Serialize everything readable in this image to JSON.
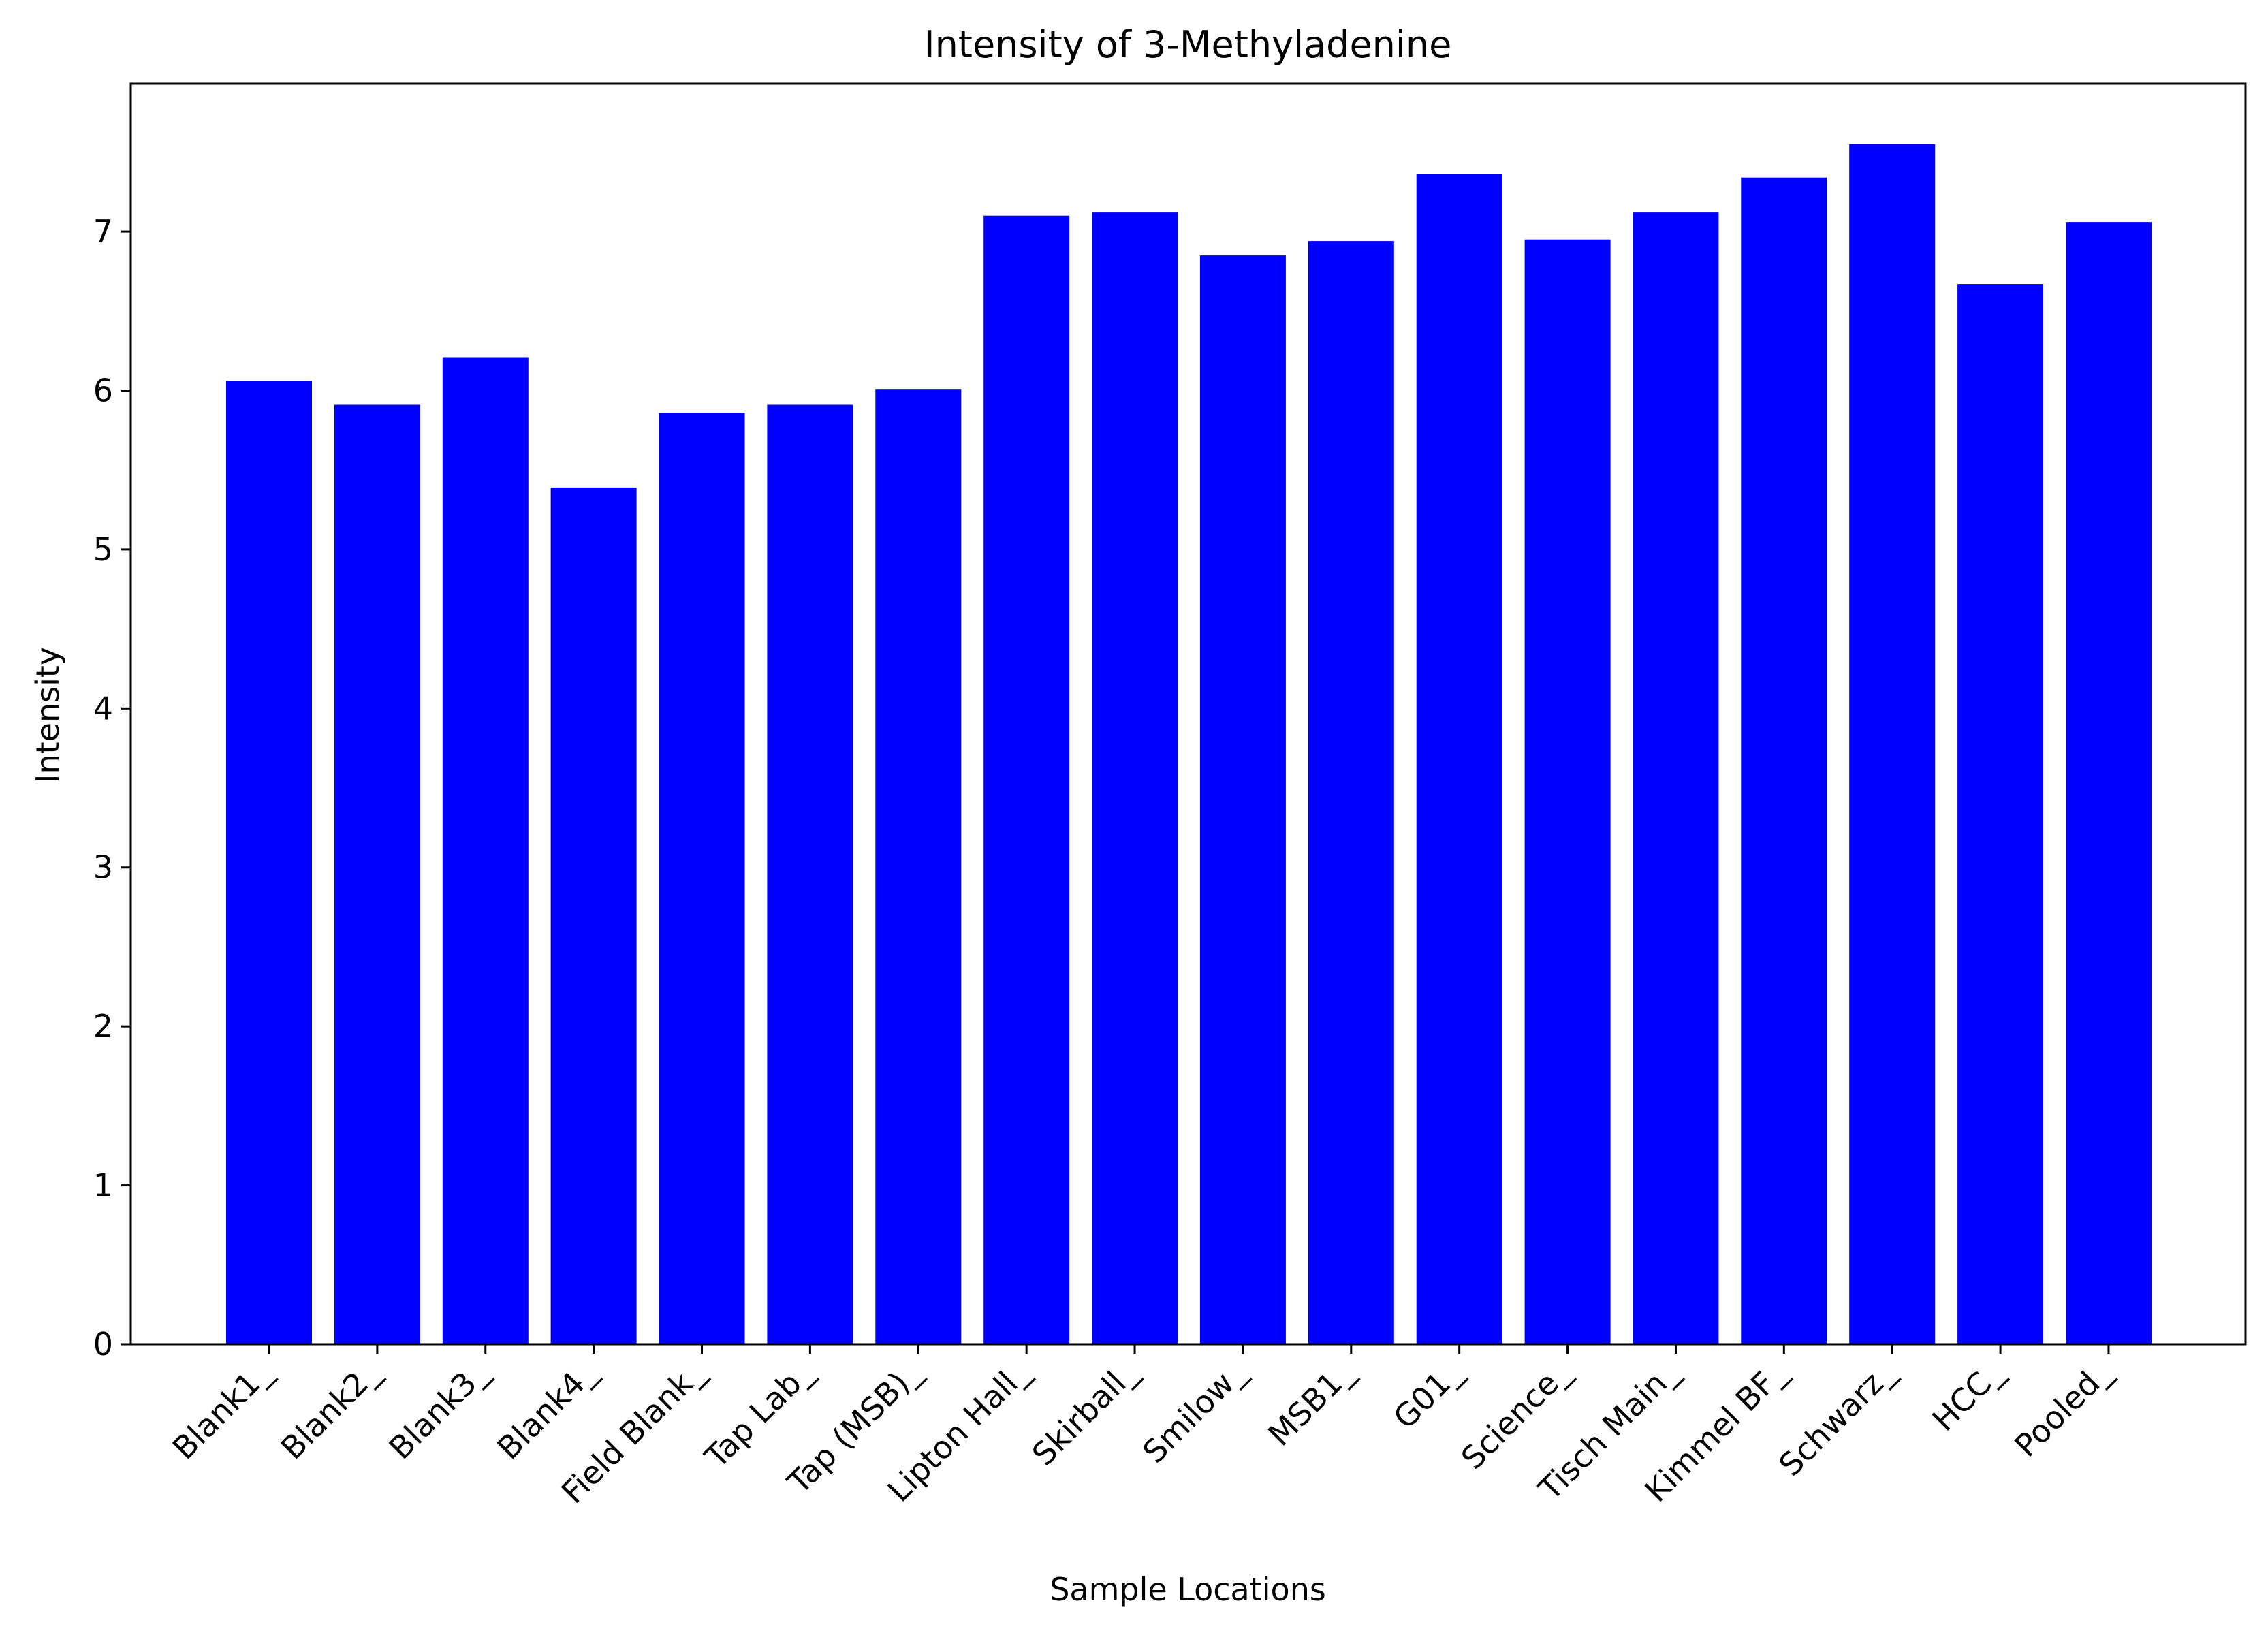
{
  "chart_data": {
    "type": "bar",
    "title": "Intensity of 3-Methyladenine",
    "xlabel": "Sample Locations",
    "ylabel": "Intensity",
    "categories": [
      "Blank1_",
      "Blank2_",
      "Blank3_",
      "Blank4_",
      "Field Blank_",
      "Tap Lab_",
      "Tap (MSB)_",
      "Lipton Hall_",
      "Skirball_",
      "Smilow_",
      "MSB1_",
      "G01_",
      "Science_",
      "Tisch Main_",
      "Kimmel BF_",
      "Schwarz_",
      "HCC_",
      "Pooled_"
    ],
    "values": [
      6.06,
      5.91,
      6.21,
      5.39,
      5.86,
      5.91,
      6.01,
      7.1,
      7.12,
      6.85,
      6.94,
      7.36,
      6.95,
      7.12,
      7.34,
      7.55,
      6.67,
      7.06
    ],
    "y_ticks": [
      "0",
      "1",
      "2",
      "3",
      "4",
      "5",
      "6",
      "7"
    ],
    "ylim": [
      0,
      7.93
    ],
    "grid": false,
    "legend": "none",
    "bar_color": "#0000ff"
  }
}
